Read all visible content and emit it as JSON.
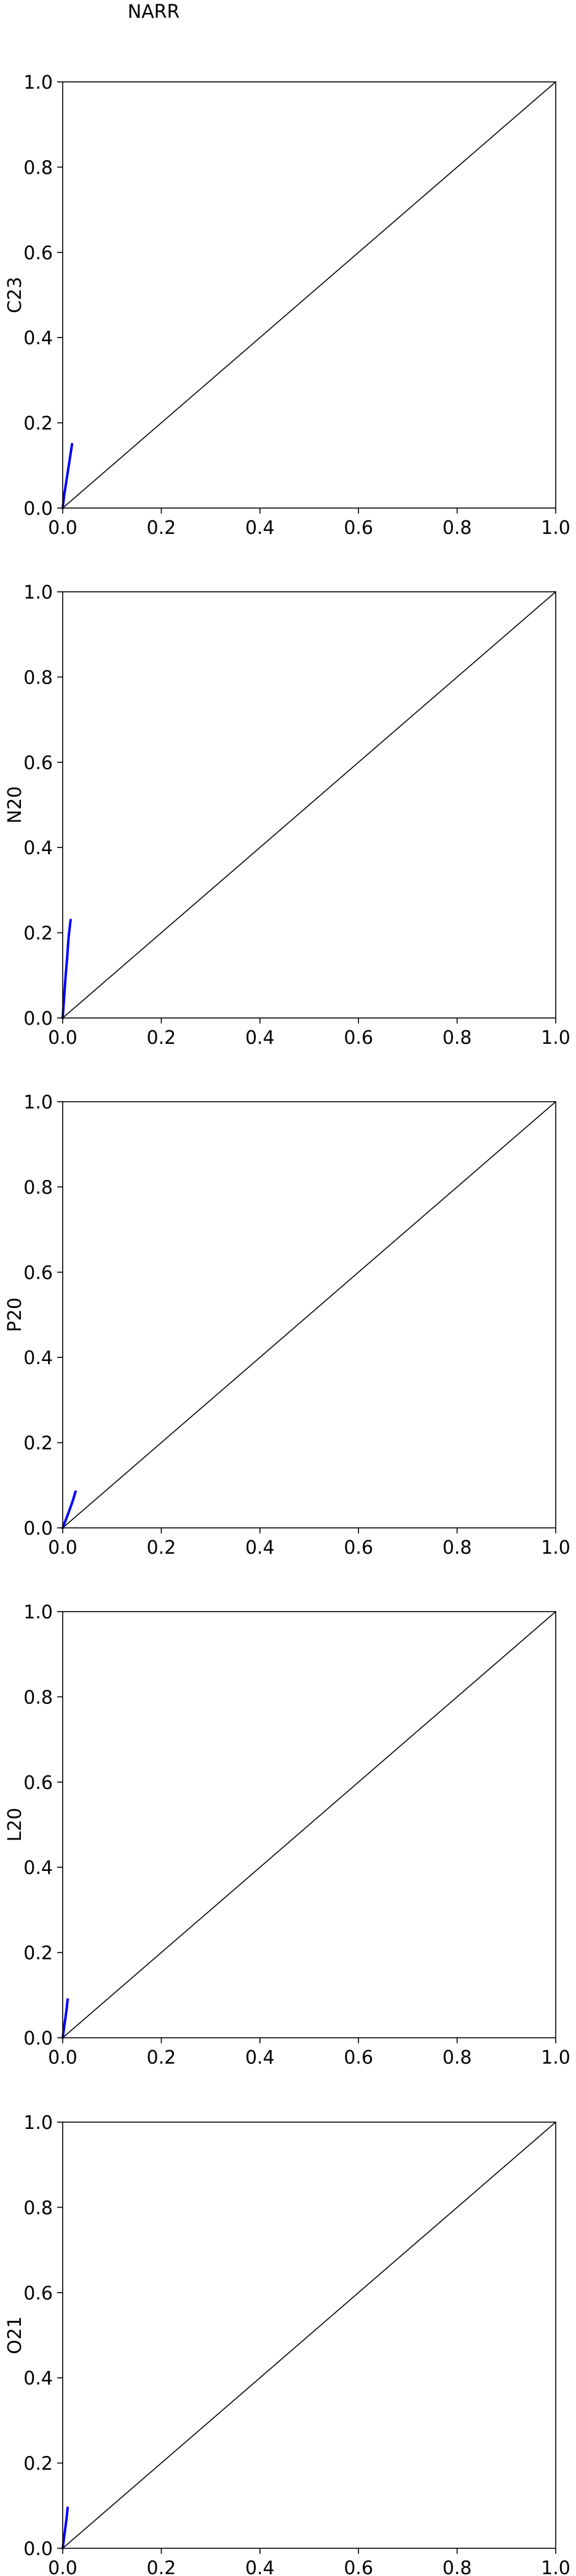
{
  "title": "NARR",
  "chart_data": [
    {
      "type": "line",
      "ylabel": "C23",
      "xlim": [
        0,
        1
      ],
      "ylim": [
        0,
        1
      ],
      "xticks": [
        "0.0",
        "0.2",
        "0.4",
        "0.6",
        "0.8",
        "1.0"
      ],
      "yticks": [
        "0.0",
        "0.2",
        "0.4",
        "0.6",
        "0.8",
        "1.0"
      ],
      "grid": false,
      "series": [
        {
          "color": "#000000",
          "x": [
            0,
            1
          ],
          "y": [
            0,
            1
          ]
        },
        {
          "color": "#0000ff",
          "x": [
            0,
            0.003,
            0.007,
            0.011,
            0.015,
            0.019
          ],
          "y": [
            0,
            0.03,
            0.06,
            0.09,
            0.12,
            0.15
          ]
        }
      ]
    },
    {
      "type": "line",
      "ylabel": "N20",
      "xlim": [
        0,
        1
      ],
      "ylim": [
        0,
        1
      ],
      "xticks": [
        "0.0",
        "0.2",
        "0.4",
        "0.6",
        "0.8",
        "1.0"
      ],
      "yticks": [
        "0.0",
        "0.2",
        "0.4",
        "0.6",
        "0.8",
        "1.0"
      ],
      "grid": false,
      "series": [
        {
          "color": "#000000",
          "x": [
            0,
            1
          ],
          "y": [
            0,
            1
          ]
        },
        {
          "color": "#0000ff",
          "x": [
            0,
            0.003,
            0.006,
            0.009,
            0.012,
            0.016
          ],
          "y": [
            0,
            0.05,
            0.1,
            0.14,
            0.19,
            0.23
          ]
        }
      ]
    },
    {
      "type": "line",
      "ylabel": "P20",
      "xlim": [
        0,
        1
      ],
      "ylim": [
        0,
        1
      ],
      "xticks": [
        "0.0",
        "0.2",
        "0.4",
        "0.6",
        "0.8",
        "1.0"
      ],
      "yticks": [
        "0.0",
        "0.2",
        "0.4",
        "0.6",
        "0.8",
        "1.0"
      ],
      "grid": false,
      "series": [
        {
          "color": "#000000",
          "x": [
            0,
            1
          ],
          "y": [
            0,
            1
          ]
        },
        {
          "color": "#0000ff",
          "x": [
            0,
            0.005,
            0.01,
            0.015,
            0.02,
            0.026
          ],
          "y": [
            0,
            0.015,
            0.03,
            0.046,
            0.062,
            0.085
          ]
        }
      ]
    },
    {
      "type": "line",
      "ylabel": "L20",
      "xlim": [
        0,
        1
      ],
      "ylim": [
        0,
        1
      ],
      "xticks": [
        "0.0",
        "0.2",
        "0.4",
        "0.6",
        "0.8",
        "1.0"
      ],
      "yticks": [
        "0.0",
        "0.2",
        "0.4",
        "0.6",
        "0.8",
        "1.0"
      ],
      "grid": false,
      "series": [
        {
          "color": "#000000",
          "x": [
            0,
            1
          ],
          "y": [
            0,
            1
          ]
        },
        {
          "color": "#0000ff",
          "x": [
            0,
            0.002,
            0.004,
            0.006,
            0.008,
            0.01
          ],
          "y": [
            0,
            0.017,
            0.034,
            0.051,
            0.068,
            0.09
          ]
        }
      ]
    },
    {
      "type": "line",
      "ylabel": "O21",
      "xlim": [
        0,
        1
      ],
      "ylim": [
        0,
        1
      ],
      "xticks": [
        "0.0",
        "0.2",
        "0.4",
        "0.6",
        "0.8",
        "1.0"
      ],
      "yticks": [
        "0.0",
        "0.2",
        "0.4",
        "0.6",
        "0.8",
        "1.0"
      ],
      "grid": false,
      "series": [
        {
          "color": "#000000",
          "x": [
            0,
            1
          ],
          "y": [
            0,
            1
          ]
        },
        {
          "color": "#0000ff",
          "x": [
            0,
            0.002,
            0.004,
            0.006,
            0.008,
            0.01
          ],
          "y": [
            0,
            0.018,
            0.036,
            0.054,
            0.072,
            0.095
          ]
        }
      ]
    }
  ]
}
